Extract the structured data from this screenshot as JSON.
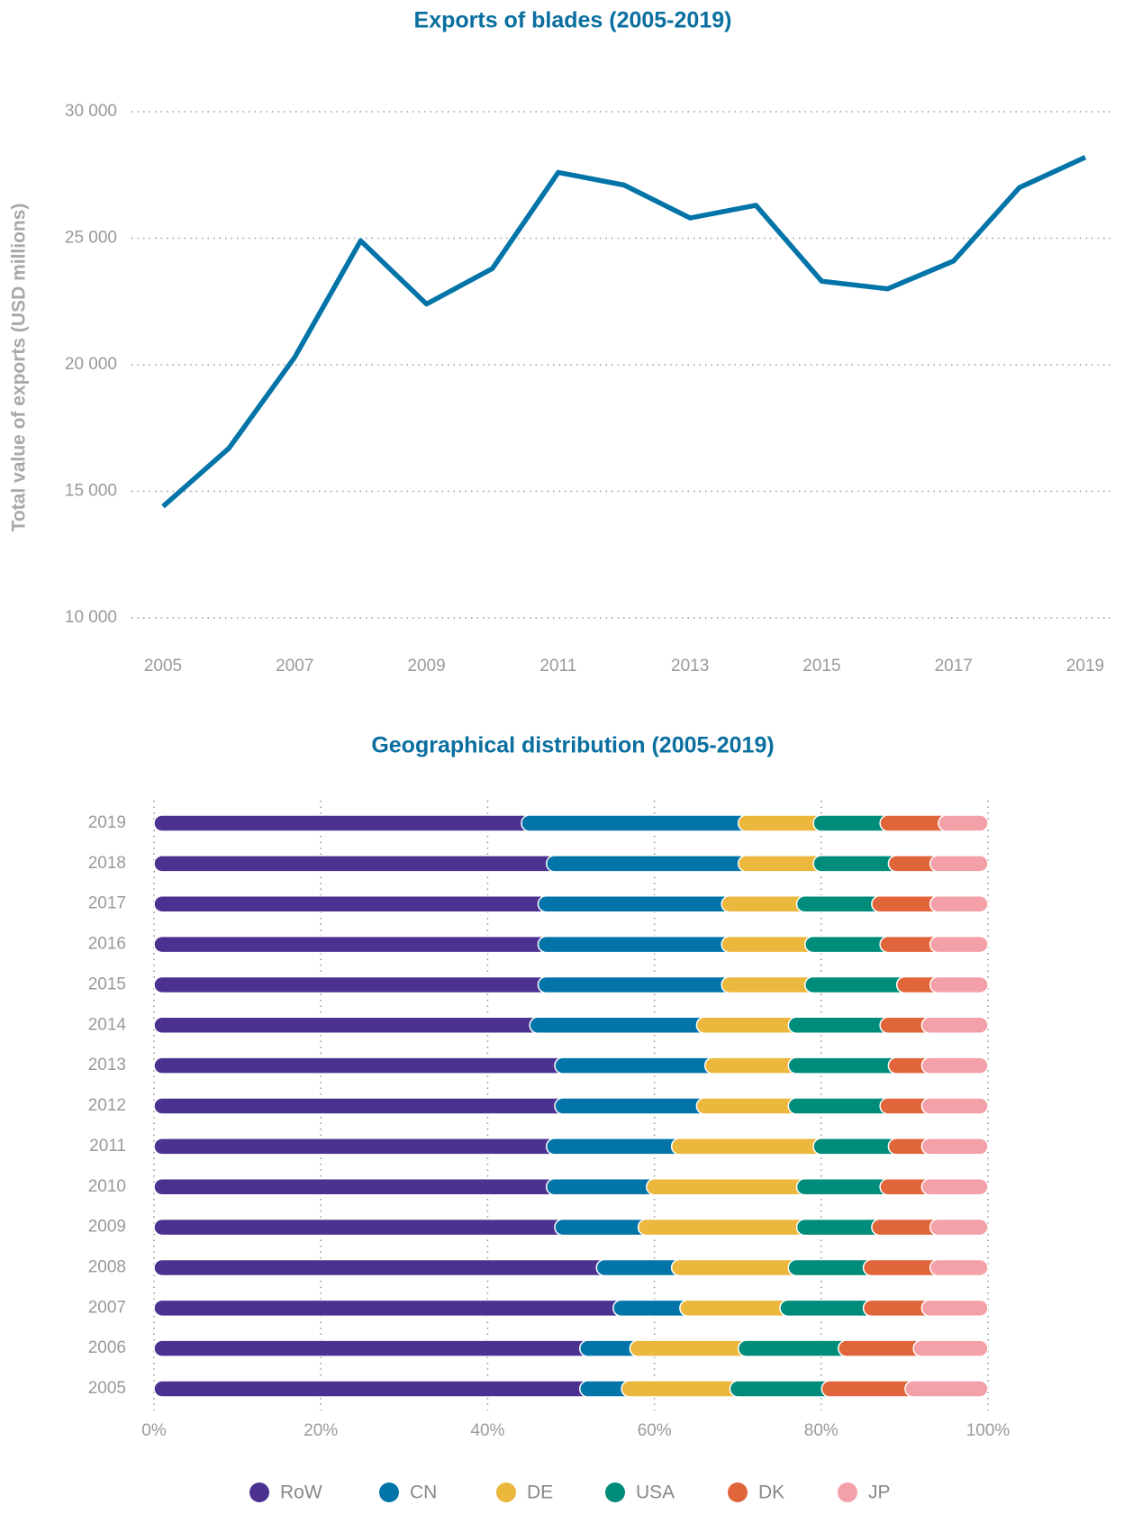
{
  "chart_data": [
    {
      "type": "line",
      "title": "Exports of blades (2005-2019)",
      "y_label": "Total value of exports (USD millions)",
      "x": [
        2005,
        2006,
        2007,
        2008,
        2009,
        2010,
        2011,
        2012,
        2013,
        2014,
        2015,
        2016,
        2017,
        2018,
        2019
      ],
      "values": [
        14400,
        16700,
        20300,
        24900,
        22400,
        23800,
        27600,
        27100,
        25800,
        26300,
        23300,
        23000,
        24100,
        27000,
        28200
      ],
      "color": "#0274a8",
      "xlim": [
        2005,
        2019
      ],
      "xticks": [
        2005,
        2007,
        2009,
        2011,
        2013,
        2015,
        2017,
        2019
      ],
      "ylim": [
        10000,
        30000
      ],
      "yticks": [
        {
          "value": 10000,
          "label": "10 000"
        },
        {
          "value": 15000,
          "label": "15 000"
        },
        {
          "value": 20000,
          "label": "20 000"
        },
        {
          "value": 25000,
          "label": "25 000"
        },
        {
          "value": 30000,
          "label": "30 000"
        }
      ],
      "grid": true
    },
    {
      "type": "bar",
      "orientation": "horizontal",
      "stacked": true,
      "title": "Geographical distribution (2005-2019)",
      "categories": [
        "2019",
        "2018",
        "2017",
        "2016",
        "2015",
        "2014",
        "2013",
        "2012",
        "2011",
        "2010",
        "2009",
        "2008",
        "2007",
        "2006",
        "2005"
      ],
      "series": [
        {
          "name": "RoW",
          "color": "#4b3291",
          "values": [
            46,
            49,
            48,
            48,
            48,
            47,
            50,
            50,
            49,
            49,
            50,
            55,
            57,
            53,
            53
          ]
        },
        {
          "name": "CN",
          "color": "#0274a8",
          "values": [
            26,
            23,
            22,
            22,
            22,
            20,
            18,
            17,
            15,
            12,
            10,
            9,
            8,
            6,
            5
          ]
        },
        {
          "name": "DE",
          "color": "#ebb73c",
          "values": [
            9,
            9,
            9,
            10,
            10,
            11,
            10,
            11,
            17,
            18,
            19,
            14,
            12,
            13,
            13
          ]
        },
        {
          "name": "USA",
          "color": "#008c7a",
          "values": [
            8,
            9,
            9,
            9,
            11,
            11,
            12,
            11,
            9,
            10,
            9,
            9,
            10,
            12,
            11
          ]
        },
        {
          "name": "DK",
          "color": "#e0653a",
          "values": [
            7,
            5,
            7,
            6,
            4,
            5,
            4,
            5,
            4,
            5,
            7,
            8,
            7,
            9,
            10
          ]
        },
        {
          "name": "JP",
          "color": "#f4a0a8",
          "values": [
            4,
            5,
            5,
            5,
            5,
            6,
            6,
            6,
            6,
            6,
            5,
            5,
            6,
            7,
            8
          ]
        }
      ],
      "xlim": [
        0,
        100
      ],
      "xticks": [
        {
          "value": 0,
          "label": "0%"
        },
        {
          "value": 20,
          "label": "20%"
        },
        {
          "value": 40,
          "label": "40%"
        },
        {
          "value": 60,
          "label": "60%"
        },
        {
          "value": 80,
          "label": "80%"
        },
        {
          "value": 100,
          "label": "100%"
        }
      ],
      "grid": true,
      "legend": "bottom"
    }
  ]
}
